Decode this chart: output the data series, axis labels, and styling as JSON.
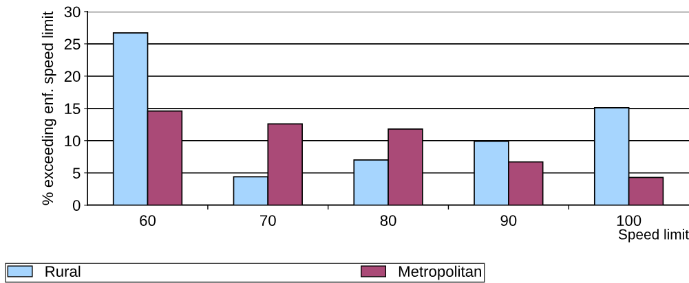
{
  "chart_data": {
    "type": "bar",
    "xlabel": "Speed limit",
    "ylabel": "% exceeding enf. speed limit",
    "categories": [
      "60",
      "70",
      "80",
      "90",
      "100"
    ],
    "series": [
      {
        "name": "Rural",
        "color": "#a6d5fe",
        "values": [
          26.7,
          4.4,
          7.0,
          9.9,
          15.1
        ]
      },
      {
        "name": "Metropolitan",
        "color": "#aa4a77",
        "values": [
          14.6,
          12.6,
          11.8,
          6.7,
          4.3
        ]
      }
    ],
    "ylim": [
      0,
      30
    ],
    "yticks": [
      0,
      5,
      10,
      15,
      20,
      25,
      30
    ],
    "grid": "y",
    "legend": "bottom left"
  }
}
